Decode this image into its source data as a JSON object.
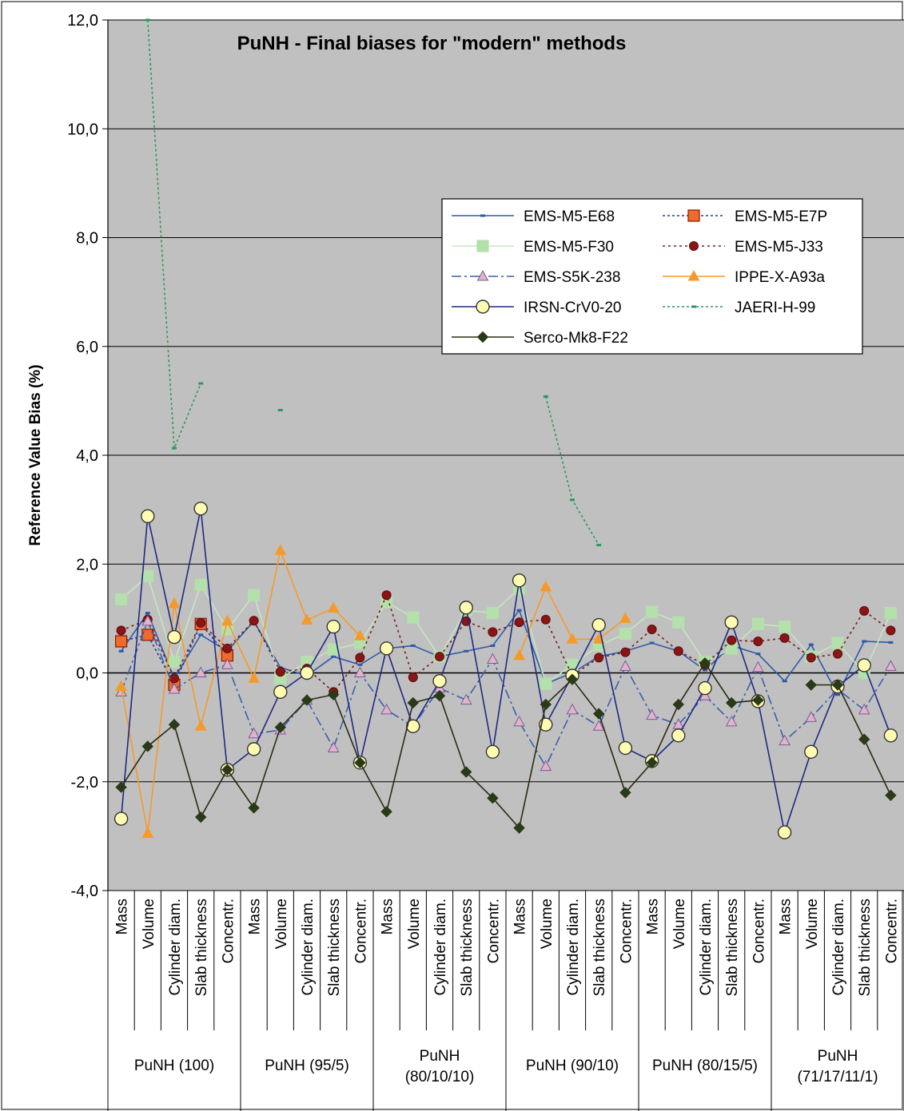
{
  "chart_data": {
    "type": "line",
    "title": "PuNH - Final biases for \"modern\" methods",
    "ylabel": "Reference Value Bias (%)",
    "xlabel": "",
    "ylim": [
      -4,
      12
    ],
    "yticks": [
      "-4,0",
      "-2,0",
      "0,0",
      "2,0",
      "4,0",
      "6,0",
      "8,0",
      "10,0",
      "12,0"
    ],
    "ytick_values": [
      -4,
      -2,
      0,
      2,
      4,
      6,
      8,
      10,
      12
    ],
    "grid": true,
    "legend_position": "top-right",
    "categories": [
      "Mass",
      "Volume",
      "Cylinder diam.",
      "Slab thickness",
      "Concentr.",
      "Mass",
      "Volume",
      "Cylinder diam.",
      "Slab thickness",
      "Concentr.",
      "Mass",
      "Volume",
      "Cylinder diam.",
      "Slab thickness",
      "Concentr.",
      "Mass",
      "Volume",
      "Cylinder diam.",
      "Slab thickness",
      "Concentr.",
      "Mass",
      "Volume",
      "Cylinder diam.",
      "Slab thickness",
      "Concentr.",
      "Mass",
      "Volume",
      "Cylinder diam.",
      "Slab thickness",
      "Concentr."
    ],
    "groups": [
      {
        "label": "PuNH (100)"
      },
      {
        "label": "PuNH (95/5)"
      },
      {
        "label": "PuNH\n(80/10/10)"
      },
      {
        "label": "PuNH (90/10)"
      },
      {
        "label": "PuNH (80/15/5)"
      },
      {
        "label": "PuNH\n(71/17/11/1)"
      }
    ],
    "series": [
      {
        "name": "EMS-M5-E68",
        "color": "#2e5aa8",
        "dash": "",
        "marker": "dash",
        "values": [
          0.4,
          1.1,
          -0.1,
          0.7,
          0.4,
          0.95,
          0.1,
          -0.05,
          0.3,
          0.15,
          0.45,
          0.5,
          0.3,
          0.4,
          0.5,
          1.15,
          -0.2,
          0.0,
          0.3,
          0.4,
          0.55,
          0.4,
          0.05,
          0.5,
          0.35,
          -0.15,
          0.52,
          -0.4,
          0.58,
          0.56
        ]
      },
      {
        "name": "EMS-M5-E7P",
        "color": "#1f3f9c",
        "dash": "3,3",
        "marker": "square",
        "markerFill": "#f06a2a",
        "markerStroke": "#8b1a00",
        "values": [
          0.58,
          0.7,
          -0.22,
          0.9,
          0.32,
          null,
          null,
          null,
          null,
          null,
          null,
          null,
          null,
          null,
          null,
          null,
          null,
          null,
          null,
          null,
          null,
          null,
          null,
          null,
          null,
          null,
          null,
          null,
          null,
          null
        ]
      },
      {
        "name": "EMS-M5-F30",
        "color": "#c6e6c0",
        "dash": "",
        "marker": "square",
        "markerFill": "#b4e0ac",
        "markerStroke": "#b4e0ac",
        "values": [
          1.35,
          1.78,
          0.2,
          1.62,
          0.8,
          1.43,
          -0.1,
          0.2,
          0.43,
          0.55,
          1.3,
          1.02,
          0.3,
          1.15,
          1.1,
          1.55,
          -0.2,
          0.15,
          0.5,
          0.72,
          1.12,
          0.93,
          0.2,
          0.45,
          0.9,
          0.85,
          0.3,
          0.55,
          0.0,
          1.1
        ]
      },
      {
        "name": "EMS-M5-J33",
        "color": "#7a1a1a",
        "dash": "3,4",
        "marker": "circle",
        "markerFill": "#8a1515",
        "markerStroke": "#5a0a0a",
        "values": [
          0.78,
          0.98,
          -0.1,
          0.92,
          0.45,
          0.96,
          0.02,
          0.08,
          -0.35,
          0.28,
          1.43,
          -0.08,
          0.3,
          0.95,
          0.75,
          0.93,
          0.98,
          -0.05,
          0.28,
          0.38,
          0.8,
          0.4,
          0.15,
          0.6,
          0.58,
          0.64,
          0.28,
          0.35,
          1.14,
          0.78
        ]
      },
      {
        "name": "EMS-S5K-238",
        "color": "#3a5fb0",
        "dash": "12,4,3,4",
        "marker": "triangle",
        "markerFill": "#e0b4c8",
        "markerStroke": "#7a5a9a",
        "values": [
          -0.35,
          0.95,
          -0.3,
          0.0,
          0.15,
          -1.12,
          -1.05,
          -0.5,
          -1.38,
          0.0,
          -0.68,
          -0.98,
          -0.28,
          -0.5,
          0.25,
          -0.9,
          -1.72,
          -0.68,
          -0.98,
          0.12,
          -0.78,
          -0.95,
          -0.42,
          -0.9,
          0.1,
          -1.25,
          -0.82,
          -0.3,
          -0.68,
          0.12
        ]
      },
      {
        "name": "IPPE-X-A93a",
        "color": "#f59a2a",
        "dash": "",
        "marker": "triangle",
        "markerFill": "#f59a2a",
        "markerStroke": "#f59a2a",
        "values": [
          -0.25,
          -2.95,
          1.27,
          -0.98,
          0.95,
          -0.1,
          2.25,
          0.97,
          1.19,
          0.68,
          null,
          null,
          null,
          null,
          null,
          0.32,
          1.58,
          0.62,
          0.62,
          1.0,
          null,
          null,
          null,
          null,
          null,
          null,
          null,
          null,
          null,
          null
        ]
      },
      {
        "name": "IRSN-CrV0-20",
        "color": "#1e2a82",
        "dash": "",
        "marker": "circleOpen",
        "markerFill": "#fffbb0",
        "markerStroke": "#333333",
        "values": [
          -2.68,
          2.88,
          0.66,
          3.02,
          -1.78,
          -1.4,
          -0.35,
          0.0,
          0.85,
          -1.65,
          0.45,
          -0.98,
          -0.15,
          1.2,
          -1.45,
          1.7,
          -0.95,
          -0.05,
          0.88,
          -1.38,
          -1.62,
          -1.15,
          -0.28,
          0.93,
          -0.52,
          -2.93,
          -1.45,
          -0.25,
          0.14,
          -1.15
        ]
      },
      {
        "name": "JAERI-H-99",
        "color": "#2a9a5a",
        "dash": "3,3",
        "marker": "dash",
        "values": [
          null,
          12.0,
          4.13,
          5.32,
          null,
          null,
          4.83,
          null,
          null,
          null,
          null,
          null,
          null,
          null,
          null,
          null,
          5.08,
          3.18,
          2.35,
          null,
          null,
          null,
          null,
          null,
          null,
          null,
          null,
          null,
          null,
          null
        ]
      },
      {
        "name": "Serco-Mk8-F22",
        "color": "#2a2a12",
        "dash": "",
        "marker": "diamond",
        "markerFill": "#2a3a18",
        "markerStroke": "#2a3a18",
        "values": [
          -2.1,
          -1.35,
          -0.95,
          -2.65,
          -1.78,
          -2.48,
          -1.0,
          -0.5,
          -0.4,
          -1.65,
          -2.55,
          -0.55,
          -0.42,
          -1.82,
          -2.3,
          -2.85,
          -0.58,
          -0.12,
          -0.75,
          -2.2,
          -1.65,
          -0.58,
          0.18,
          -0.55,
          -0.5,
          null,
          -0.22,
          -0.22,
          -1.22,
          -2.25
        ]
      }
    ]
  }
}
